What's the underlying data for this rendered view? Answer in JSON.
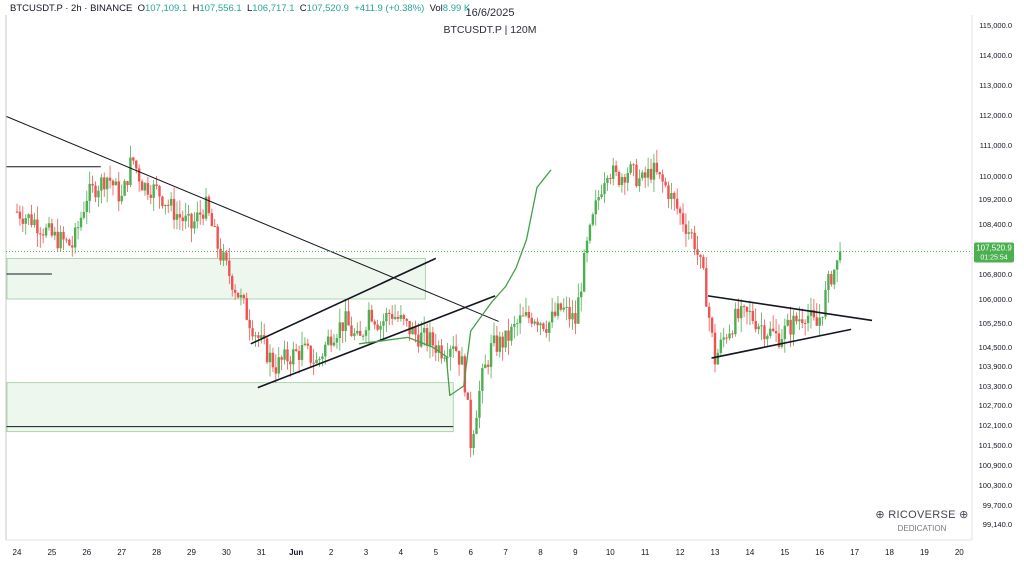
{
  "legend": {
    "symbol": "BTCUSDT.P · 2h · BINANCE",
    "o_label": "O",
    "o": "107,109.1",
    "h_label": "H",
    "h": "107,556.1",
    "l_label": "L",
    "l": "106,717.1",
    "c_label": "C",
    "c": "107,520.9",
    "change": "+411.9 (+0.38%)",
    "vol_label": "Vol",
    "vol": "8.99 K"
  },
  "header": {
    "date": "16/6/2025",
    "subtitle": "BTCUSDT.P | 120M"
  },
  "watermark": {
    "name": "RICOVERSE",
    "tagline": "DEDICATION"
  },
  "price_badge": {
    "price": "107,520.9",
    "countdown": "01:25:54"
  },
  "colors": {
    "up": "#4caf50",
    "down": "#ef5350",
    "zone_fill": "#eef7ee",
    "zone_stroke": "#9ccc9c",
    "projection": "#43a047",
    "badge": "#4caf50"
  },
  "chart_data": {
    "type": "candlestick",
    "symbol": "BTCUSDT.P",
    "interval": "2h",
    "current_price": 107520.9,
    "y_ticks": [
      "115,000.0",
      "114,000.0",
      "113,000.0",
      "112,000.0",
      "111,000.0",
      "110,000.0",
      "109,200.0",
      "108,400.0",
      "106,800.0",
      "106,000.0",
      "105,250.0",
      "104,500.0",
      "103,900.0",
      "103,300.0",
      "102,700.0",
      "102,100.0",
      "101,500.0",
      "100,900.0",
      "100,300.0",
      "99,700.0",
      "99,140.0"
    ],
    "y_tick_values": [
      115000,
      114000,
      113000,
      112000,
      111000,
      110000,
      109200,
      108400,
      106800,
      106000,
      105250,
      104500,
      103900,
      103300,
      102700,
      102100,
      101500,
      100900,
      100300,
      99700,
      99140
    ],
    "x_ticks": [
      "24",
      "25",
      "26",
      "27",
      "28",
      "29",
      "30",
      "31",
      "Jun",
      "2",
      "3",
      "4",
      "5",
      "6",
      "7",
      "8",
      "9",
      "10",
      "11",
      "12",
      "13",
      "14",
      "15",
      "16",
      "17",
      "18",
      "19",
      "20"
    ],
    "x_tick_index": [
      0,
      1,
      2,
      3,
      4,
      5,
      6,
      7,
      8,
      9,
      10,
      11,
      12,
      13,
      14,
      15,
      16,
      17,
      18,
      19,
      20,
      21,
      22,
      23,
      24,
      25,
      26,
      27
    ],
    "closes": [
      [
        0.0,
        108800
      ],
      [
        0.5,
        108500
      ],
      [
        1.0,
        108000
      ],
      [
        1.6,
        107700
      ],
      [
        2.0,
        109300
      ],
      [
        2.6,
        110000
      ],
      [
        3.0,
        109200
      ],
      [
        3.3,
        110600
      ],
      [
        3.6,
        109700
      ],
      [
        4.0,
        109500
      ],
      [
        4.5,
        108800
      ],
      [
        5.0,
        108300
      ],
      [
        5.4,
        109000
      ],
      [
        5.8,
        107500
      ],
      [
        6.2,
        106500
      ],
      [
        6.6,
        105500
      ],
      [
        7.0,
        104600
      ],
      [
        7.4,
        103900
      ],
      [
        7.8,
        104200
      ],
      [
        8.2,
        104400
      ],
      [
        8.6,
        104000
      ],
      [
        9.0,
        104900
      ],
      [
        9.4,
        105300
      ],
      [
        9.8,
        104600
      ],
      [
        10.1,
        105700
      ],
      [
        10.4,
        105200
      ],
      [
        10.7,
        105600
      ],
      [
        11.0,
        105300
      ],
      [
        11.4,
        104900
      ],
      [
        11.8,
        104700
      ],
      [
        12.2,
        104400
      ],
      [
        12.5,
        104700
      ],
      [
        12.8,
        103800
      ],
      [
        13.0,
        101600
      ],
      [
        13.3,
        103400
      ],
      [
        13.6,
        104500
      ],
      [
        14.0,
        104700
      ],
      [
        14.4,
        105300
      ],
      [
        14.8,
        105500
      ],
      [
        15.2,
        105200
      ],
      [
        15.6,
        105700
      ],
      [
        16.0,
        105300
      ],
      [
        16.3,
        107500
      ],
      [
        16.6,
        109000
      ],
      [
        16.9,
        110300
      ],
      [
        17.2,
        109900
      ],
      [
        17.5,
        110200
      ],
      [
        17.9,
        109800
      ],
      [
        18.2,
        110200
      ],
      [
        18.6,
        109600
      ],
      [
        19.0,
        108700
      ],
      [
        19.4,
        107900
      ],
      [
        19.7,
        106500
      ],
      [
        20.0,
        104100
      ],
      [
        20.3,
        104900
      ],
      [
        20.6,
        105400
      ],
      [
        21.0,
        105500
      ],
      [
        21.4,
        105100
      ],
      [
        21.8,
        104800
      ],
      [
        22.2,
        105200
      ],
      [
        22.6,
        105600
      ],
      [
        22.9,
        105100
      ],
      [
        23.1,
        105800
      ],
      [
        23.3,
        106700
      ],
      [
        23.5,
        107100
      ],
      [
        23.6,
        107520.9
      ]
    ],
    "zones": [
      {
        "x0": 0.0,
        "x1": 11.7,
        "top": 107300,
        "bottom": 106000
      },
      {
        "x0": 0.0,
        "x1": 12.5,
        "top": 103400,
        "bottom": 101900
      }
    ]
  }
}
